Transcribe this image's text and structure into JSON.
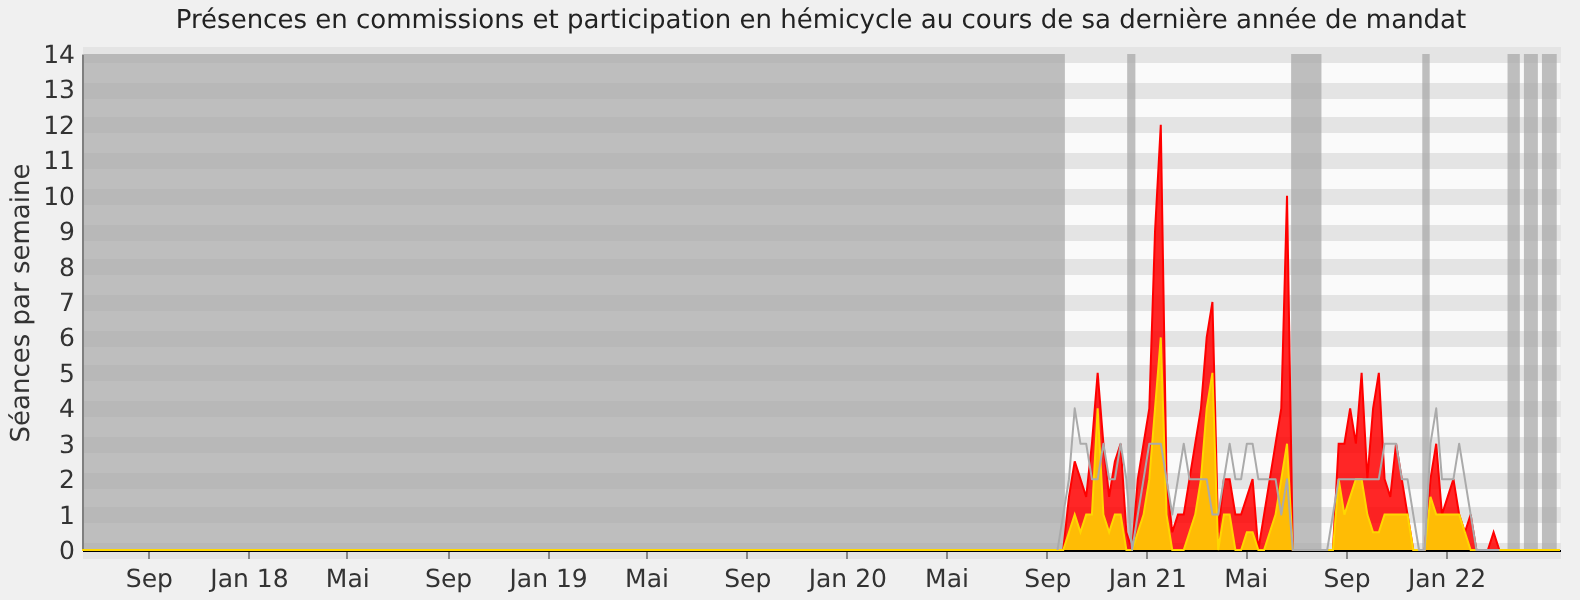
{
  "chart_data": {
    "type": "area",
    "title": "Présences en commissions et participation en hémicycle au cours de sa dernière année de mandat",
    "ylabel": "Séances par semaine",
    "x": [
      "2017-06-12",
      "2020-09-14",
      "2020-09-21",
      "2020-09-28",
      "2020-10-05",
      "2020-10-12",
      "2020-10-19",
      "2020-10-26",
      "2020-11-02",
      "2020-11-09",
      "2020-11-16",
      "2020-11-23",
      "2020-11-30",
      "2020-12-07",
      "2020-12-14",
      "2020-12-21",
      "2020-12-28",
      "2021-01-04",
      "2021-01-11",
      "2021-01-18",
      "2021-01-25",
      "2021-02-01",
      "2021-02-08",
      "2021-02-15",
      "2021-02-22",
      "2021-03-01",
      "2021-03-08",
      "2021-03-15",
      "2021-03-22",
      "2021-03-29",
      "2021-04-05",
      "2021-04-12",
      "2021-04-19",
      "2021-04-26",
      "2021-05-03",
      "2021-05-10",
      "2021-05-17",
      "2021-05-24",
      "2021-05-31",
      "2021-06-07",
      "2021-06-14",
      "2021-06-21",
      "2021-06-28",
      "2021-07-05",
      "2021-07-12",
      "2021-07-19",
      "2021-07-26",
      "2021-08-02",
      "2021-08-09",
      "2021-08-16",
      "2021-08-23",
      "2021-08-30",
      "2021-09-06",
      "2021-09-13",
      "2021-09-20",
      "2021-09-27",
      "2021-10-04",
      "2021-10-11",
      "2021-10-18",
      "2021-10-25",
      "2021-11-01",
      "2021-11-08",
      "2021-11-15",
      "2021-11-22",
      "2021-11-29",
      "2021-12-06",
      "2021-12-13",
      "2021-12-20",
      "2021-12-27",
      "2022-01-03",
      "2022-01-10",
      "2022-01-17",
      "2022-01-24",
      "2022-01-31",
      "2022-02-07",
      "2022-02-14",
      "2022-02-21",
      "2022-02-28",
      "2022-03-07",
      "2022-05-20"
    ],
    "series": [
      {
        "color": "#ff0000",
        "values": [
          0,
          0,
          0,
          1.5,
          2.5,
          2,
          1.5,
          3,
          5,
          3,
          1.5,
          2.5,
          3,
          0.5,
          0,
          2,
          3,
          4,
          9,
          12,
          2,
          0.5,
          1,
          1,
          2,
          3,
          4,
          6,
          7,
          0.5,
          2,
          2,
          1,
          1,
          1.5,
          2,
          0,
          1,
          2,
          3,
          4,
          10,
          0,
          0,
          0,
          0,
          0,
          0,
          0,
          0,
          3,
          3,
          4,
          3,
          5,
          2,
          4,
          5,
          2,
          1.5,
          3,
          2,
          1,
          0,
          0,
          0,
          2,
          3,
          1,
          1.5,
          2,
          1,
          0.5,
          1,
          0,
          0,
          0,
          0.5,
          0,
          0
        ]
      },
      {
        "color": "#ffd700",
        "values": [
          0,
          0,
          0,
          0.5,
          1,
          0.5,
          1,
          1,
          4,
          1,
          0.5,
          1,
          1,
          0,
          0,
          0.5,
          1,
          2,
          4,
          6,
          1,
          0,
          0,
          0,
          0.5,
          1,
          2,
          4,
          5,
          0,
          1,
          1,
          0,
          0,
          0.5,
          0.5,
          0,
          0,
          0.5,
          1,
          2,
          3,
          0,
          0,
          0,
          0,
          0,
          0,
          0,
          0,
          2,
          1,
          1.5,
          2,
          2,
          1,
          0.5,
          0.5,
          1,
          1,
          1,
          1,
          1,
          0,
          0,
          0,
          1.5,
          1,
          1,
          1,
          1,
          1,
          0.5,
          0,
          0,
          0,
          0,
          0,
          0,
          0
        ]
      },
      {
        "type": "line",
        "color": "#aaaaaa",
        "values": [
          null,
          0,
          1,
          2,
          4,
          3,
          3,
          2,
          2,
          3,
          2,
          2,
          3,
          2,
          0,
          1,
          2,
          3,
          3,
          3,
          2,
          1,
          2,
          3,
          2,
          2,
          2,
          2,
          1,
          1,
          2,
          3,
          2,
          2,
          3,
          3,
          2,
          2,
          2,
          2,
          1,
          2,
          0,
          0,
          0,
          0,
          0,
          0,
          0,
          1,
          2,
          2,
          2,
          2,
          2,
          2,
          2,
          2,
          3,
          3,
          3,
          2,
          2,
          1,
          0,
          0,
          3,
          4,
          2,
          2,
          2,
          3,
          2,
          1,
          0,
          0,
          0,
          0,
          0,
          null
        ]
      }
    ],
    "xlim": [
      "2017-06-12",
      "2022-05-20"
    ],
    "xticks": [
      {
        "value": "2017-09-01",
        "label": "Sep"
      },
      {
        "value": "2018-01-01",
        "label": "Jan 18"
      },
      {
        "value": "2018-05-01",
        "label": "Mai"
      },
      {
        "value": "2018-09-01",
        "label": "Sep"
      },
      {
        "value": "2019-01-01",
        "label": "Jan 19"
      },
      {
        "value": "2019-05-01",
        "label": "Mai"
      },
      {
        "value": "2019-09-01",
        "label": "Sep"
      },
      {
        "value": "2020-01-01",
        "label": "Jan 20"
      },
      {
        "value": "2020-05-01",
        "label": "Mai"
      },
      {
        "value": "2020-09-01",
        "label": "Sep"
      },
      {
        "value": "2021-01-01",
        "label": "Jan 21"
      },
      {
        "value": "2021-05-01",
        "label": "Mai"
      },
      {
        "value": "2021-09-01",
        "label": "Sep"
      },
      {
        "value": "2022-01-01",
        "label": "Jan 22"
      }
    ],
    "ylim": [
      0,
      14
    ],
    "yticks": [
      0,
      1,
      2,
      3,
      4,
      5,
      6,
      7,
      8,
      9,
      10,
      11,
      12,
      13,
      14
    ],
    "grid": "y",
    "bands": [
      {
        "axis": "x",
        "from": "2017-06-12",
        "to": "2020-09-23",
        "color": "#aaaaaa"
      },
      {
        "axis": "x",
        "from": "2020-12-08",
        "to": "2020-12-18",
        "color": "#aaaaaa"
      },
      {
        "axis": "x",
        "from": "2021-06-26",
        "to": "2021-08-02",
        "color": "#aaaaaa"
      },
      {
        "axis": "x",
        "from": "2021-12-03",
        "to": "2021-12-12",
        "color": "#aaaaaa"
      },
      {
        "axis": "x",
        "from": "2022-03-17",
        "to": "2022-04-01",
        "color": "#aaaaaa"
      },
      {
        "axis": "x",
        "from": "2022-04-06",
        "to": "2022-04-23",
        "color": "#aaaaaa"
      },
      {
        "axis": "x",
        "from": "2022-04-28",
        "to": "2022-05-16",
        "color": "#aaaaaa"
      }
    ]
  }
}
